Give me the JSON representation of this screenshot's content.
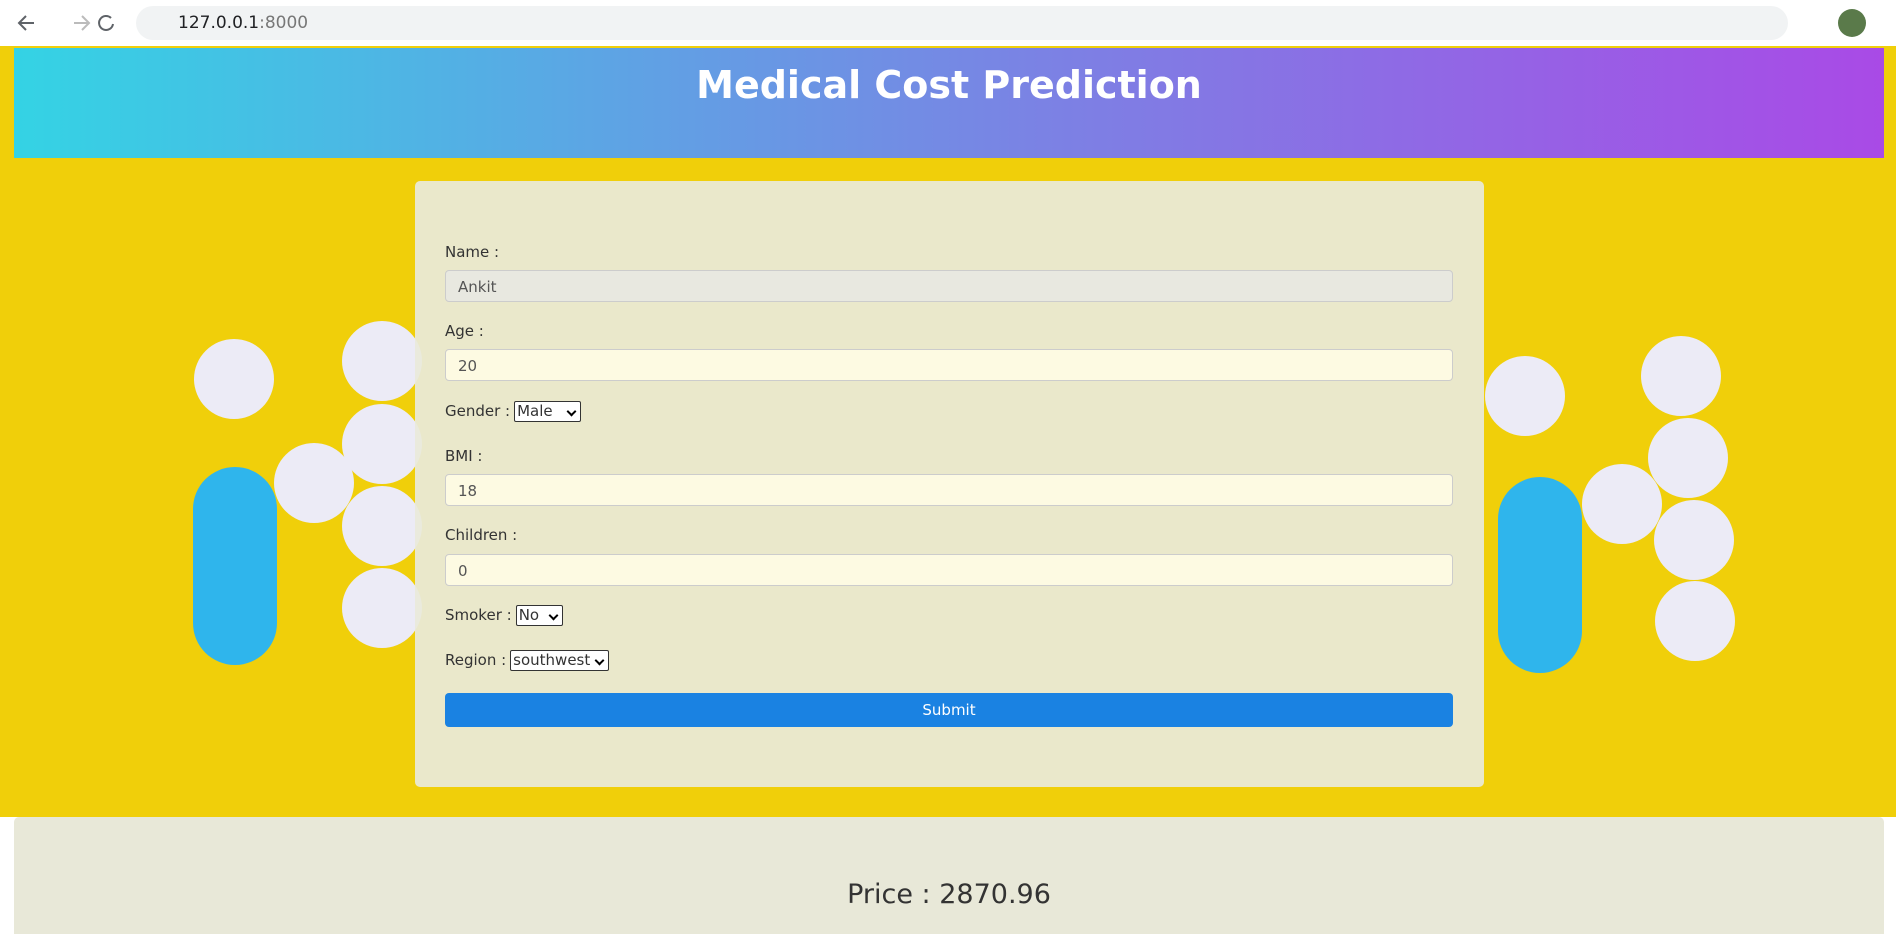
{
  "browser": {
    "url_host": "127.0.0.1",
    "url_port": ":8000"
  },
  "header": {
    "title": "Medical Cost Prediction"
  },
  "form": {
    "name": {
      "label": "Name :",
      "value": "Ankit"
    },
    "age": {
      "label": "Age :",
      "value": "20"
    },
    "gender": {
      "label": "Gender :",
      "value": "Male"
    },
    "bmi": {
      "label": "BMI :",
      "value": "18"
    },
    "children": {
      "label": "Children :",
      "value": "0"
    },
    "smoker": {
      "label": "Smoker :",
      "value": "No"
    },
    "region": {
      "label": "Region :",
      "value": "southwest"
    },
    "submit": "Submit"
  },
  "result": {
    "price": "Price : 2870.96"
  }
}
